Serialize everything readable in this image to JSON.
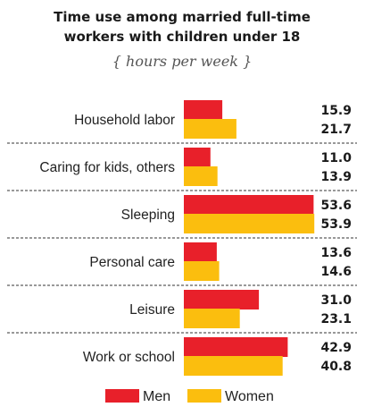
{
  "chart_data": {
    "type": "bar",
    "orientation": "horizontal",
    "title_lines": [
      "Time use among married full-time",
      "workers with children under 18"
    ],
    "subtitle": "{ hours per week }",
    "categories": [
      "Household labor",
      "Caring for kids, others",
      "Sleeping",
      "Personal care",
      "Leisure",
      "Work or school"
    ],
    "series": [
      {
        "name": "Men",
        "color": "#e8202a",
        "values": [
          15.9,
          11.0,
          53.6,
          13.6,
          31.0,
          42.9
        ],
        "labels": [
          "15.9",
          "11.0",
          "53.6",
          "13.6",
          "31.0",
          "42.9"
        ]
      },
      {
        "name": "Women",
        "color": "#fbbe0e",
        "values": [
          21.7,
          13.9,
          53.9,
          14.6,
          23.1,
          40.8
        ],
        "labels": [
          "21.7",
          "13.9",
          "53.9",
          "14.6",
          "23.1",
          "40.8"
        ]
      }
    ],
    "xlim": [
      0,
      55
    ],
    "grid": false,
    "legend_position": "bottom-center"
  }
}
